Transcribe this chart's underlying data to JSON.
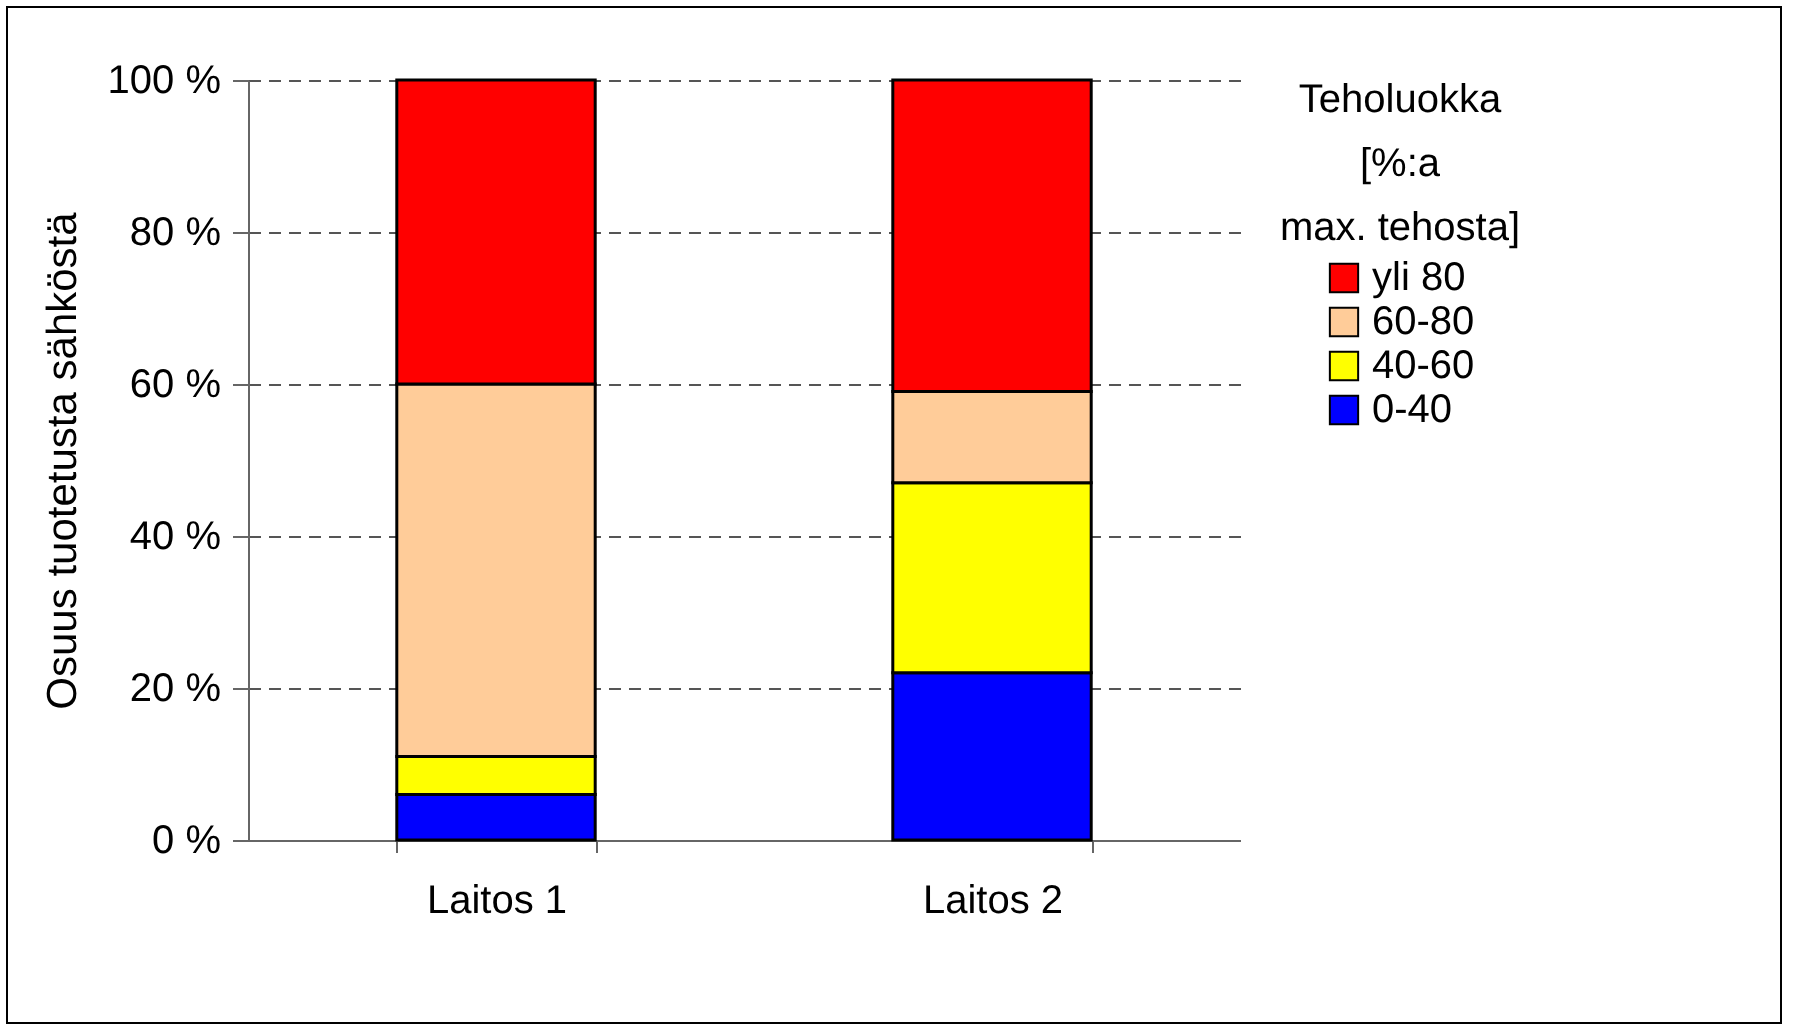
{
  "chart_data": {
    "type": "bar",
    "stacked": true,
    "ylabel": "Osuus tuotetusta sähköstä",
    "legend_title": "Teholuokka\n[%:a\nmax. tehosta]",
    "categories": [
      "Laitos 1",
      "Laitos 2"
    ],
    "series": [
      {
        "name": "0-40",
        "color": "#0000ff",
        "values": [
          6,
          22
        ]
      },
      {
        "name": "40-60",
        "color": "#ffff00",
        "values": [
          5,
          25
        ]
      },
      {
        "name": "60-80",
        "color": "#ffcc99",
        "values": [
          49,
          12
        ]
      },
      {
        "name": "yli 80",
        "color": "#ff0000",
        "values": [
          40,
          41
        ]
      }
    ],
    "ylim": [
      0,
      100
    ],
    "yticks": [
      {
        "value": 0,
        "label": "0 %"
      },
      {
        "value": 20,
        "label": "20 %"
      },
      {
        "value": 40,
        "label": "40 %"
      },
      {
        "value": 60,
        "label": "60 %"
      },
      {
        "value": 80,
        "label": "80 %"
      },
      {
        "value": 100,
        "label": "100 %"
      }
    ],
    "grid": "y",
    "legend": "right"
  }
}
